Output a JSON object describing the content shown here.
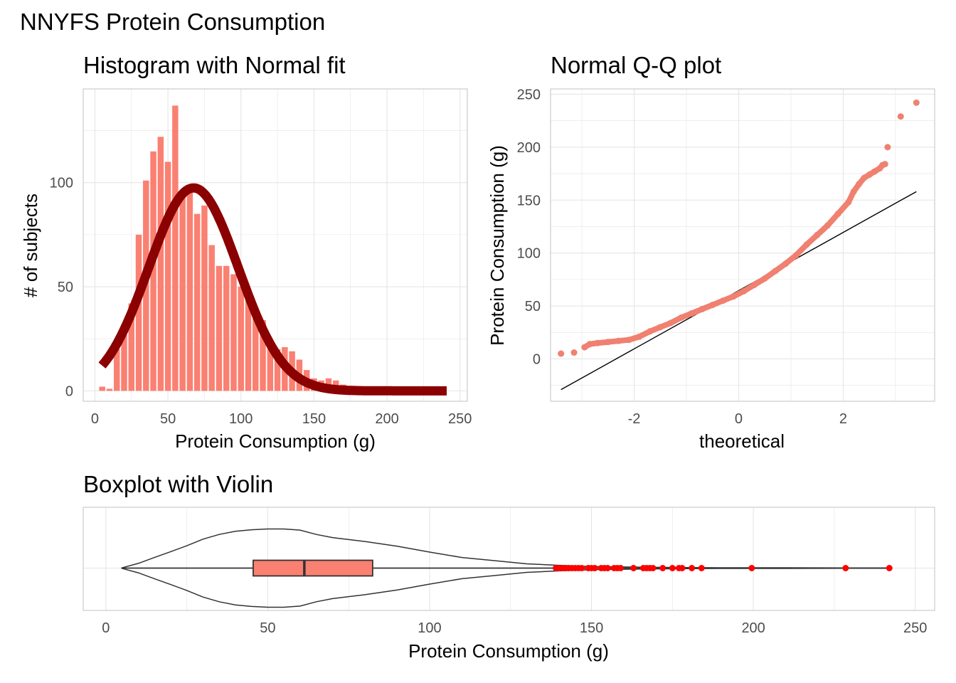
{
  "title": "NNYFS Protein Consumption",
  "colors": {
    "bar_fill": "#fa8072",
    "normal_curve": "#8b0000",
    "qq_points": "#f08070",
    "qq_line": "#000000",
    "box_fill": "#fa8072",
    "outliers": "#ff0000",
    "grid": "#e5e5e5",
    "panel_border": "#cccccc"
  },
  "chart_data": [
    {
      "type": "bar",
      "panel": "histogram",
      "title": "Histogram with Normal fit",
      "xlabel": "Protein Consumption (g)",
      "ylabel": "# of subjects",
      "xlim": [
        -8,
        255
      ],
      "ylim": [
        -5,
        145
      ],
      "xticks": [
        0,
        50,
        100,
        150,
        200,
        250
      ],
      "yticks": [
        0,
        50,
        100
      ],
      "grid": true,
      "bin_width": 5,
      "bin_centers": [
        5,
        10,
        15,
        20,
        25,
        30,
        35,
        40,
        45,
        50,
        55,
        60,
        65,
        70,
        75,
        80,
        85,
        90,
        95,
        100,
        105,
        110,
        115,
        120,
        125,
        130,
        135,
        140,
        145,
        150,
        155,
        160,
        165,
        170,
        175,
        180,
        185,
        190,
        195,
        200,
        205,
        210,
        215,
        220,
        225,
        230,
        235,
        240
      ],
      "counts": [
        2,
        1,
        20,
        27,
        42,
        75,
        101,
        115,
        122,
        110,
        137,
        95,
        97,
        85,
        89,
        70,
        60,
        60,
        56,
        50,
        45,
        36,
        34,
        23,
        20,
        21,
        19,
        15,
        10,
        6,
        5,
        6,
        5,
        3,
        2,
        1,
        1,
        1,
        1,
        1,
        0,
        0,
        0,
        0,
        0,
        0,
        0,
        0
      ],
      "normal_fit": {
        "mean": 67.5,
        "sd": 30.7,
        "n": 1500,
        "bin_width": 5,
        "x_range": [
          4.9,
          241.8
        ]
      }
    },
    {
      "type": "scatter",
      "panel": "qq",
      "title": "Normal Q-Q plot",
      "xlabel": "theoretical",
      "ylabel": "Protein Consumption (g)",
      "xlim": [
        -3.6,
        3.75
      ],
      "ylim": [
        -40,
        255
      ],
      "xticks": [
        -2,
        0,
        2
      ],
      "yticks": [
        0,
        50,
        100,
        150,
        200,
        250
      ],
      "grid": true,
      "x": [
        -3.4,
        -3.15,
        -2.95,
        -2.85,
        -2.7,
        -2.5,
        -2.3,
        -2.1,
        -1.9,
        -1.7,
        -1.5,
        -1.3,
        -1.1,
        -0.9,
        -0.7,
        -0.5,
        -0.3,
        -0.1,
        0.1,
        0.3,
        0.5,
        0.7,
        0.9,
        1.1,
        1.3,
        1.5,
        1.7,
        1.9,
        2.1,
        2.2,
        2.3,
        2.4,
        2.5,
        2.6,
        2.7,
        2.75,
        2.8,
        2.85,
        3.1,
        3.4
      ],
      "y": [
        5,
        6,
        11,
        14,
        15,
        16,
        17,
        18,
        21,
        26,
        30,
        34,
        39,
        43,
        47,
        51,
        55,
        59,
        64,
        70,
        76,
        83,
        90,
        98,
        108,
        117,
        126,
        137,
        148,
        158,
        165,
        171,
        174,
        177,
        180,
        183,
        184,
        200,
        229,
        242
      ],
      "reference_line": {
        "x": [
          -3.4,
          3.4
        ],
        "y": [
          -29,
          158
        ]
      }
    },
    {
      "type": "box",
      "panel": "boxplot",
      "title": "Boxplot with Violin",
      "xlabel": "Protein Consumption (g)",
      "xlim": [
        -7,
        256
      ],
      "xticks": [
        0,
        50,
        100,
        150,
        200,
        250
      ],
      "grid": true,
      "range": [
        4.9,
        241.8
      ],
      "q1": 45.5,
      "median": 61.3,
      "q3": 82.4,
      "whisker_low": 4.9,
      "whisker_high": 138.8,
      "outliers": [
        139,
        140,
        141,
        142,
        143,
        144,
        145,
        146,
        147,
        149,
        150,
        151,
        153,
        154,
        155,
        157,
        158,
        159,
        163,
        166,
        167,
        168,
        169,
        172,
        175,
        177,
        178,
        181,
        184,
        199.5,
        228.5,
        242
      ],
      "violin_density": {
        "x": [
          4.9,
          10,
          15,
          20,
          25,
          30,
          35,
          40,
          45,
          50,
          55,
          60,
          65,
          70,
          75,
          80,
          90,
          100,
          110,
          120,
          130,
          140,
          150,
          160,
          170,
          180,
          190,
          200,
          210,
          220,
          230,
          241.8
        ],
        "half_width": [
          0.005,
          0.12,
          0.27,
          0.42,
          0.57,
          0.74,
          0.86,
          0.94,
          0.98,
          1.0,
          1.0,
          0.97,
          0.86,
          0.78,
          0.73,
          0.68,
          0.56,
          0.41,
          0.27,
          0.19,
          0.11,
          0.07,
          0.04,
          0.03,
          0.02,
          0.015,
          0.01,
          0.01,
          0.01,
          0.008,
          0.006,
          0.004
        ]
      }
    }
  ]
}
